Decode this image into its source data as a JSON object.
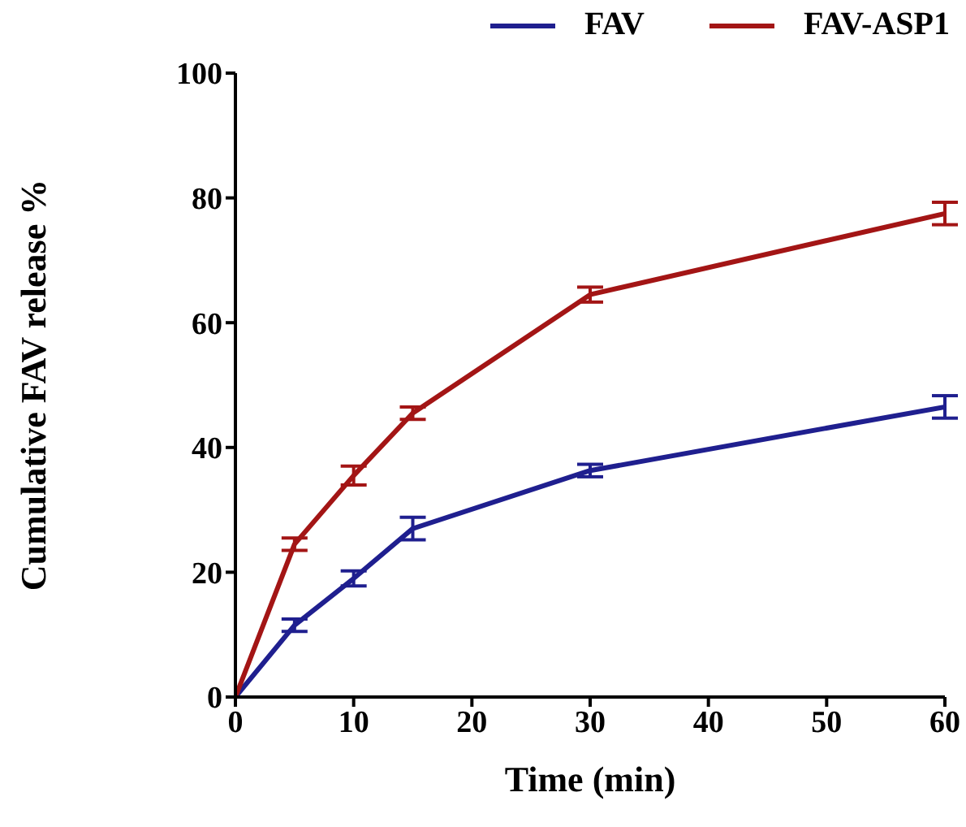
{
  "chart_data": {
    "type": "line",
    "xlabel": "Time (min)",
    "ylabel": "Cumulative FAV release %",
    "x": [
      0,
      5,
      10,
      15,
      30,
      60
    ],
    "series": [
      {
        "name": "FAV",
        "color": "#1f1f8f",
        "values": [
          0,
          11.5,
          19,
          27,
          36.3,
          46.5
        ],
        "errors": [
          null,
          1,
          1.2,
          1.8,
          1,
          1.8
        ]
      },
      {
        "name": "FAV-ASP1",
        "color": "#a31515",
        "values": [
          0,
          24.5,
          35.5,
          45.5,
          64.5,
          77.5
        ],
        "errors": [
          null,
          1,
          1.5,
          1,
          1.2,
          1.8
        ]
      }
    ],
    "xlim": [
      0,
      60
    ],
    "xticks": [
      0,
      10,
      20,
      30,
      40,
      50,
      60
    ],
    "ylim": [
      0,
      100
    ],
    "yticks": [
      0,
      20,
      40,
      60,
      80,
      100
    ],
    "grid": false,
    "legend": "top right",
    "marker": "none",
    "line_style": "solid"
  }
}
